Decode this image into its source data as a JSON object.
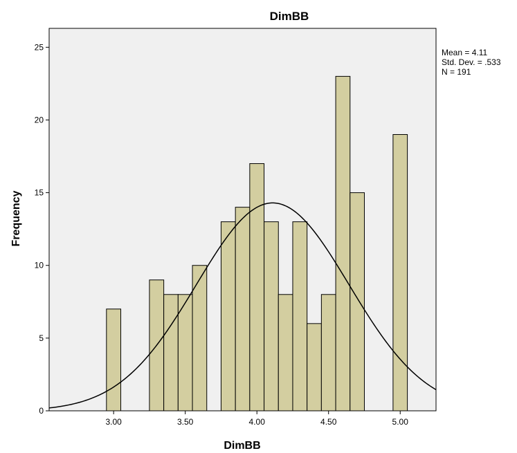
{
  "chart_data": {
    "type": "bar",
    "title": "DimBB",
    "xlabel": "DimBB",
    "ylabel": "Frequency",
    "xlim": [
      2.55,
      5.25
    ],
    "ylim": [
      0,
      26.3
    ],
    "x_ticks": [
      3.0,
      3.5,
      4.0,
      4.5,
      5.0
    ],
    "x_tick_labels": [
      "3.00",
      "3.50",
      "4.00",
      "4.50",
      "5.00"
    ],
    "y_ticks": [
      0,
      5,
      10,
      15,
      20,
      25
    ],
    "y_tick_labels": [
      "0",
      "5",
      "10",
      "15",
      "20",
      "25"
    ],
    "bin_width": 0.1,
    "bins": [
      {
        "x": 3.0,
        "count": 7
      },
      {
        "x": 3.3,
        "count": 9
      },
      {
        "x": 3.4,
        "count": 8
      },
      {
        "x": 3.5,
        "count": 8
      },
      {
        "x": 3.6,
        "count": 10
      },
      {
        "x": 3.8,
        "count": 13
      },
      {
        "x": 3.9,
        "count": 14
      },
      {
        "x": 4.0,
        "count": 17
      },
      {
        "x": 4.1,
        "count": 13
      },
      {
        "x": 4.2,
        "count": 8
      },
      {
        "x": 4.3,
        "count": 13
      },
      {
        "x": 4.4,
        "count": 6
      },
      {
        "x": 4.5,
        "count": 8
      },
      {
        "x": 4.6,
        "count": 23
      },
      {
        "x": 4.7,
        "count": 15
      },
      {
        "x": 5.0,
        "count": 19
      }
    ],
    "normal_curve": {
      "mean": 4.11,
      "std_dev": 0.533,
      "n": 191
    },
    "grid": false,
    "colors": {
      "plot_background": "#f0f0f0",
      "bar_fill": "#d3cea0",
      "bar_stroke": "#000000",
      "curve": "#000000"
    },
    "stats_text": [
      "Mean = 4.11",
      "Std. Dev. = .533",
      "N = 191"
    ]
  }
}
